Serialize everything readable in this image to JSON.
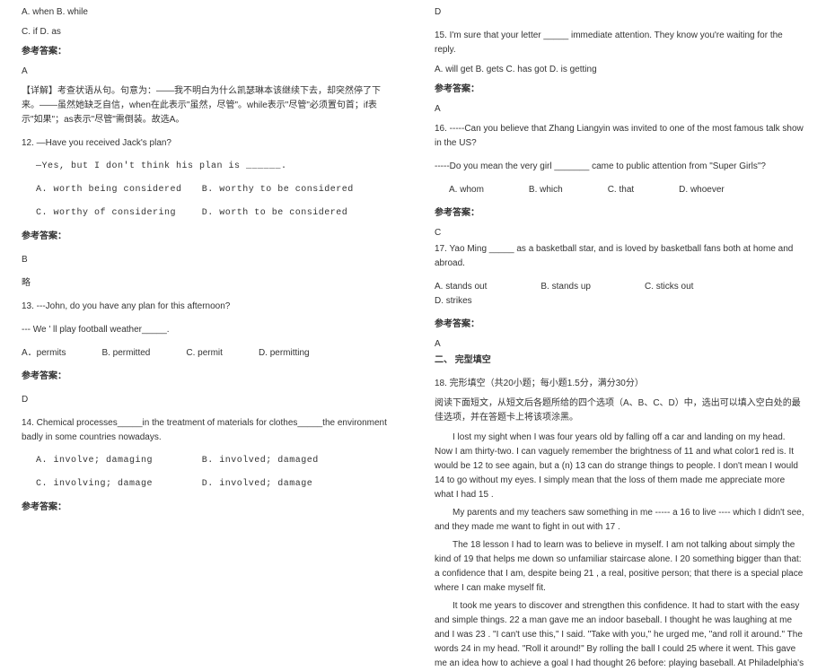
{
  "left": {
    "q11_opts_line1": "A. when   B. while",
    "q11_opts_line2": "C. if   D. as",
    "answer_label": "参考答案：",
    "q11_answer": "A",
    "q11_explain": "【详解】考查状语从句。句意为：——我不明白为什么凯瑟琳本该继续下去，却突然停了下来。——虽然她缺乏自信，when在此表示\"虽然，尽管\"。while表示\"尽管\"必须置句首；if表示\"如果\"；as表示\"尽管\"需倒装。故选A。",
    "q12_stem": "12. —Have you received Jack's plan?",
    "q12_sub": "—Yes, but I don't think his plan is ______.",
    "q12_a": "A. worth being considered",
    "q12_b": "B. worthy to be considered",
    "q12_c": "C. worthy of considering",
    "q12_d": "D. worth to be considered",
    "q12_answer": "B",
    "q12_note": "略",
    "q13_stem": "13. ---John, do you have any plan for this afternoon?",
    "q13_sub": "--- We ' ll play football weather_____.",
    "q13_a": "A．permits",
    "q13_b": "B. permitted",
    "q13_c": "C. permit",
    "q13_d": "D. permitting",
    "q13_answer": "D",
    "q14_stem": "14. Chemical processes_____in the treatment of materials for clothes_____the environment badly in some countries nowadays.",
    "q14_a": "A. involve; damaging",
    "q14_b": "B. involved; damaged",
    "q14_c": "C. involving; damage",
    "q14_d": "D. involved; damage",
    "q14_answer": "参考答案："
  },
  "right": {
    "q14_ans_letter": "D",
    "q15_stem": "15. I'm sure that your letter _____ immediate attention. They know you're waiting for the reply.",
    "q15_opts": "A. will get   B. gets  C. has got  D. is getting",
    "q15_answer": "A",
    "q16_stem1": "16. -----Can you believe that Zhang Liangyin was invited to one of the most famous talk show in the US?",
    "q16_stem2": "-----Do you mean the very girl _______ came to public attention from \"Super Girls\"?",
    "q16_a": "A. whom",
    "q16_b": "B. which",
    "q16_c": "C. that",
    "q16_d": "D. whoever",
    "q16_answer": "C",
    "q17_stem": "17. Yao Ming _____ as a basketball star, and is loved by basketball fans both at home and abroad.",
    "q17_a": "A. stands out",
    "q17_b": "B. stands up",
    "q17_c": "C. sticks out",
    "q17_d": "D. strikes",
    "q17_answer": "A",
    "section2": "二、 完型填空",
    "q18_title": "18. 完形填空（共20小题；每小题1.5分，满分30分）",
    "q18_instr": "阅读下面短文，从短文后各题所给的四个选项（A、B、C、D）中，选出可以填入空白处的最佳选项，并在答题卡上将该项涂黑。",
    "p1": "I lost my sight when I was four years old by falling off a car and landing on my head. Now I am thirty-two. I can vaguely remember the brightness of    11    and what color1 red is. It would be    12    to see again, but a (n)    13    can do strange things to people. I don't mean I would    14    to go without my eyes. I simply mean that the loss of them made me appreciate more what I had    15   .",
    "p2": "My parents and my teachers saw something in me ----- a    16    to live ---- which I didn't see, and they made me want to fight in out with    17   .",
    "p3": "The    18    lesson I had to learn was to believe in myself. I am not talking about simply the kind of    19    that helps me down so unfamiliar staircase alone. I    20    something bigger than that: a confidence that I am, despite being    21   , a real, positive person; that there is a special place where I can make myself fit.",
    "p4": "It took me years to discover and strengthen this confidence. It had to start with the easy and simple things.    22    a man gave me an indoor baseball. I thought he was laughing at me and I was    23   . \"I can't use this,\" I said. \"Take with you,\" he urged me, \"and roll it around.\" The words    24    in my head. \"Roll it around!\" By rolling the ball I could    25    where it went. This gave me an idea how to achieve a goal I had thought    26    before: playing baseball. At Philadelphia's"
  },
  "labels": {
    "answer": "参考答案："
  }
}
